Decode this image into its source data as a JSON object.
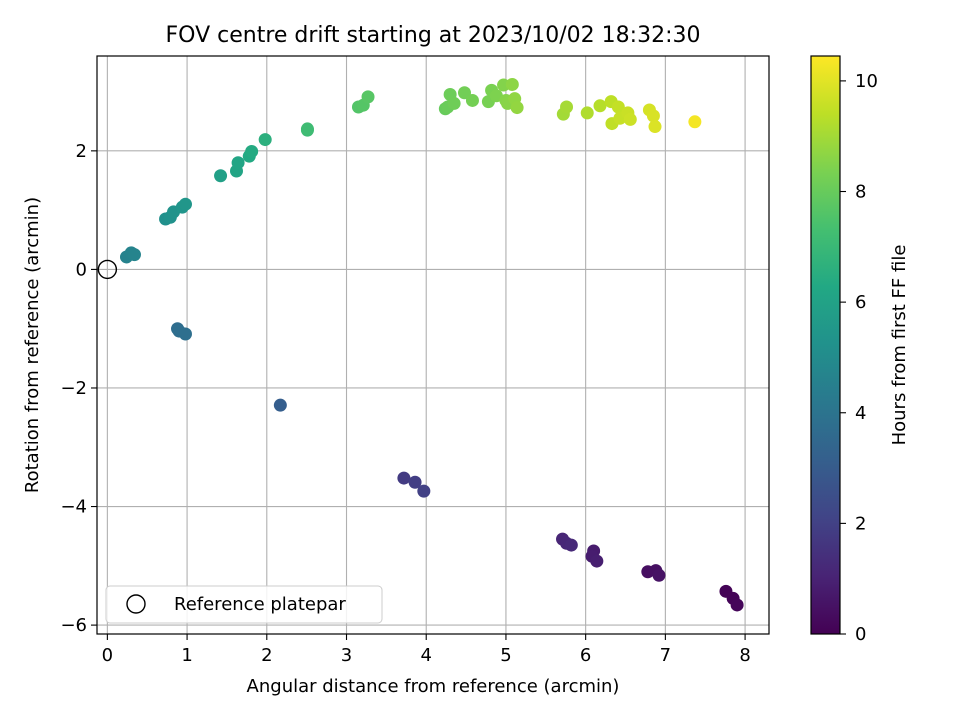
{
  "chart_data": {
    "type": "scatter",
    "title": "FOV centre drift starting at 2023/10/02 18:32:30",
    "xlabel": "Angular distance from reference (arcmin)",
    "ylabel": "Rotation from reference (arcmin)",
    "xlim": [
      -0.13,
      8.3
    ],
    "ylim": [
      -6.15,
      3.6
    ],
    "xticks": [
      0,
      1,
      2,
      3,
      4,
      5,
      6,
      7,
      8
    ],
    "xtick_labels": [
      "0",
      "1",
      "2",
      "3",
      "4",
      "5",
      "6",
      "7",
      "8"
    ],
    "yticks": [
      -6,
      -4,
      -2,
      0,
      2
    ],
    "ytick_labels": [
      "−6",
      "−4",
      "−2",
      "0",
      "2"
    ],
    "grid": true,
    "legend": {
      "placement": "lower-left",
      "entries": [
        "Reference platepar"
      ]
    },
    "colorbar": {
      "label": "Hours from first FF file",
      "range": [
        0,
        10.45
      ],
      "ticks": [
        0,
        2,
        4,
        6,
        8,
        10
      ],
      "tick_labels": [
        "0",
        "2",
        "4",
        "6",
        "8",
        "10"
      ],
      "colormap": "viridis"
    },
    "reference_point": {
      "x": 0,
      "y": 0
    },
    "points": [
      {
        "x": 7.76,
        "y": -5.43,
        "c": 0.05
      },
      {
        "x": 7.85,
        "y": -5.55,
        "c": 0.1
      },
      {
        "x": 7.9,
        "y": -5.66,
        "c": 0.15
      },
      {
        "x": 6.78,
        "y": -5.1,
        "c": 0.4
      },
      {
        "x": 6.88,
        "y": -5.08,
        "c": 0.45
      },
      {
        "x": 6.92,
        "y": -5.16,
        "c": 0.5
      },
      {
        "x": 6.1,
        "y": -4.75,
        "c": 0.8
      },
      {
        "x": 6.08,
        "y": -4.84,
        "c": 0.85
      },
      {
        "x": 6.14,
        "y": -4.92,
        "c": 0.9
      },
      {
        "x": 5.71,
        "y": -4.55,
        "c": 1.1
      },
      {
        "x": 5.76,
        "y": -4.62,
        "c": 1.15
      },
      {
        "x": 5.82,
        "y": -4.65,
        "c": 1.2
      },
      {
        "x": 3.72,
        "y": -3.52,
        "c": 1.8
      },
      {
        "x": 3.86,
        "y": -3.59,
        "c": 1.9
      },
      {
        "x": 3.97,
        "y": -3.74,
        "c": 2.0
      },
      {
        "x": 2.17,
        "y": -2.29,
        "c": 3.1
      },
      {
        "x": 0.88,
        "y": -1.0,
        "c": 3.7
      },
      {
        "x": 0.9,
        "y": -1.04,
        "c": 3.75
      },
      {
        "x": 0.98,
        "y": -1.09,
        "c": 3.8
      },
      {
        "x": 0.24,
        "y": 0.21,
        "c": 4.6
      },
      {
        "x": 0.3,
        "y": 0.28,
        "c": 4.65
      },
      {
        "x": 0.34,
        "y": 0.25,
        "c": 4.7
      },
      {
        "x": 0.73,
        "y": 0.85,
        "c": 5.2
      },
      {
        "x": 0.79,
        "y": 0.88,
        "c": 5.25
      },
      {
        "x": 0.83,
        "y": 0.97,
        "c": 5.3
      },
      {
        "x": 0.94,
        "y": 1.05,
        "c": 5.4
      },
      {
        "x": 0.98,
        "y": 1.1,
        "c": 5.45
      },
      {
        "x": 1.42,
        "y": 1.58,
        "c": 5.9
      },
      {
        "x": 1.62,
        "y": 1.66,
        "c": 6.1
      },
      {
        "x": 1.64,
        "y": 1.8,
        "c": 6.15
      },
      {
        "x": 1.78,
        "y": 1.91,
        "c": 6.3
      },
      {
        "x": 1.81,
        "y": 1.99,
        "c": 6.35
      },
      {
        "x": 1.98,
        "y": 2.19,
        "c": 6.6
      },
      {
        "x": 2.51,
        "y": 2.35,
        "c": 7.1
      },
      {
        "x": 2.51,
        "y": 2.37,
        "c": 7.15
      },
      {
        "x": 3.15,
        "y": 2.74,
        "c": 7.6
      },
      {
        "x": 3.21,
        "y": 2.77,
        "c": 7.65
      },
      {
        "x": 3.27,
        "y": 2.91,
        "c": 7.7
      },
      {
        "x": 4.24,
        "y": 2.71,
        "c": 8.0
      },
      {
        "x": 4.27,
        "y": 2.74,
        "c": 8.05
      },
      {
        "x": 4.3,
        "y": 2.95,
        "c": 8.1
      },
      {
        "x": 4.35,
        "y": 2.8,
        "c": 8.15
      },
      {
        "x": 4.48,
        "y": 2.98,
        "c": 8.2
      },
      {
        "x": 4.58,
        "y": 2.85,
        "c": 8.25
      },
      {
        "x": 4.78,
        "y": 2.83,
        "c": 8.3
      },
      {
        "x": 4.82,
        "y": 3.02,
        "c": 8.35
      },
      {
        "x": 4.88,
        "y": 2.93,
        "c": 8.4
      },
      {
        "x": 4.97,
        "y": 3.11,
        "c": 8.5
      },
      {
        "x": 5.0,
        "y": 2.85,
        "c": 8.55
      },
      {
        "x": 5.02,
        "y": 2.8,
        "c": 8.6
      },
      {
        "x": 5.08,
        "y": 3.12,
        "c": 8.65
      },
      {
        "x": 5.11,
        "y": 2.88,
        "c": 8.7
      },
      {
        "x": 5.14,
        "y": 2.73,
        "c": 8.75
      },
      {
        "x": 5.72,
        "y": 2.62,
        "c": 9.0
      },
      {
        "x": 5.76,
        "y": 2.74,
        "c": 9.05
      },
      {
        "x": 6.02,
        "y": 2.64,
        "c": 9.2
      },
      {
        "x": 6.18,
        "y": 2.76,
        "c": 9.3
      },
      {
        "x": 6.32,
        "y": 2.83,
        "c": 9.4
      },
      {
        "x": 6.33,
        "y": 2.46,
        "c": 9.45
      },
      {
        "x": 6.41,
        "y": 2.74,
        "c": 9.5
      },
      {
        "x": 6.43,
        "y": 2.55,
        "c": 9.55
      },
      {
        "x": 6.53,
        "y": 2.64,
        "c": 9.6
      },
      {
        "x": 6.56,
        "y": 2.53,
        "c": 9.65
      },
      {
        "x": 6.8,
        "y": 2.69,
        "c": 9.8
      },
      {
        "x": 6.85,
        "y": 2.59,
        "c": 9.85
      },
      {
        "x": 6.87,
        "y": 2.41,
        "c": 9.9
      },
      {
        "x": 7.37,
        "y": 2.49,
        "c": 10.3
      }
    ]
  }
}
